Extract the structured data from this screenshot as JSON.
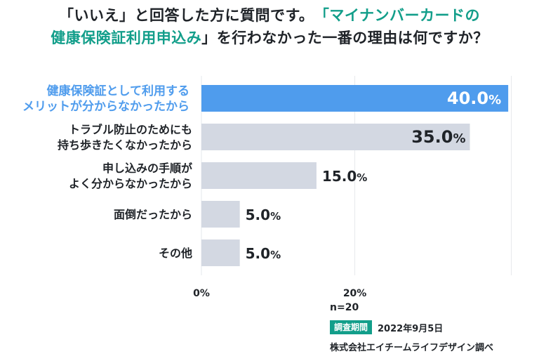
{
  "title": {
    "line1_part1": "「いいえ」と回答した方に質問です。",
    "line1_part2": "「マイナンバーカードの",
    "line2_part1": "健康保険証利用申込み",
    "line2_part2": "」を行わなかった一番の理由は何ですか？"
  },
  "chart_data": {
    "type": "bar",
    "orientation": "horizontal",
    "categories": [
      [
        "健康保険証として利用する",
        "メリットが分からなかったから"
      ],
      [
        "トラブル防止のためにも",
        "持ち歩きたくなかったから"
      ],
      [
        "申し込みの手順が",
        "よく分からなかったから"
      ],
      [
        "面倒だったから"
      ],
      [
        "その他"
      ]
    ],
    "values": [
      40.0,
      35.0,
      15.0,
      5.0,
      5.0
    ],
    "value_labels": [
      "40.0",
      "35.0",
      "15.0",
      "5.0",
      "5.0"
    ],
    "value_unit": "%",
    "highlight_index": 0,
    "x_ticks": [
      "0%",
      "20%"
    ],
    "x_tick_values": [
      0,
      20
    ],
    "xlim": [
      0,
      42
    ],
    "grid": true,
    "colors": {
      "highlight_bar": "#4f9ced",
      "bar": "#d3d8e2",
      "highlight_label": "#4f9ced",
      "label": "#1f2328",
      "grid": "#e6e8ec",
      "accent": "#129e8a"
    }
  },
  "footer": {
    "n": "n=20",
    "period_badge": "調査期間",
    "period_date": "2022年9月5日",
    "source": "株式会社エイチームライフデザイン調べ"
  }
}
